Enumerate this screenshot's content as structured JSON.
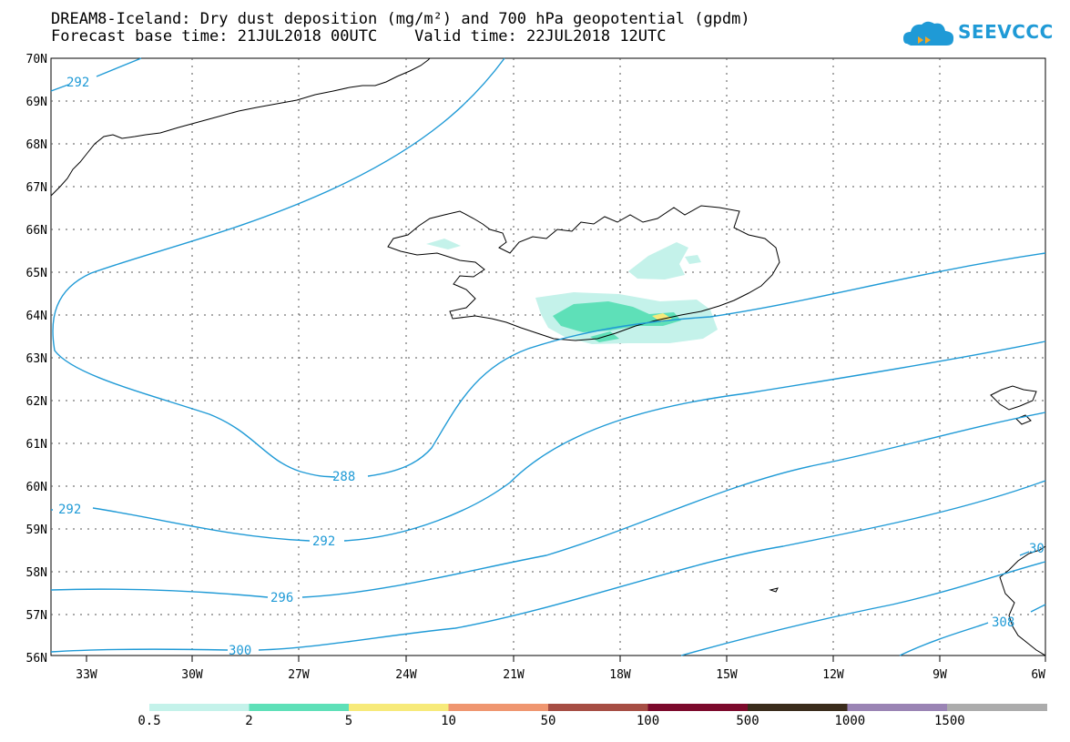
{
  "header": {
    "title_line1": "DREAM8-Iceland: Dry dust deposition (mg/m²) and 700 hPa geopotential (gpdm)",
    "title_line2": "Forecast base time: 21JUL2018 00UTC    Valid time: 22JUL2018 12UTC",
    "logo_text": "SEEVCCC"
  },
  "axes": {
    "lat_labels": [
      "70N",
      "69N",
      "68N",
      "67N",
      "66N",
      "65N",
      "64N",
      "63N",
      "62N",
      "61N",
      "60N",
      "59N",
      "58N",
      "57N",
      "56N"
    ],
    "lon_labels": [
      "33W",
      "30W",
      "27W",
      "24W",
      "21W",
      "18W",
      "15W",
      "12W",
      "9W",
      "6W"
    ]
  },
  "contours": {
    "color": "#1f9ad6",
    "labels": [
      {
        "text": "292",
        "id": "c292a"
      },
      {
        "text": "288",
        "id": "c288"
      },
      {
        "text": "292",
        "id": "c292b"
      },
      {
        "text": "292",
        "id": "c292c"
      },
      {
        "text": "296",
        "id": "c296"
      },
      {
        "text": "300",
        "id": "c300"
      },
      {
        "text": "308",
        "id": "c308"
      },
      {
        "text": "30",
        "id": "c30x"
      }
    ]
  },
  "colorbar": {
    "colors": [
      "#c4f2ea",
      "#5ee0b8",
      "#f7ea7a",
      "#ef9670",
      "#a64e44",
      "#7c0a2c",
      "#3a2c1c",
      "#9a84b4",
      "#acacac"
    ],
    "labels": [
      "0.5",
      "2",
      "5",
      "10",
      "50",
      "100",
      "500",
      "1000",
      "1500"
    ]
  }
}
